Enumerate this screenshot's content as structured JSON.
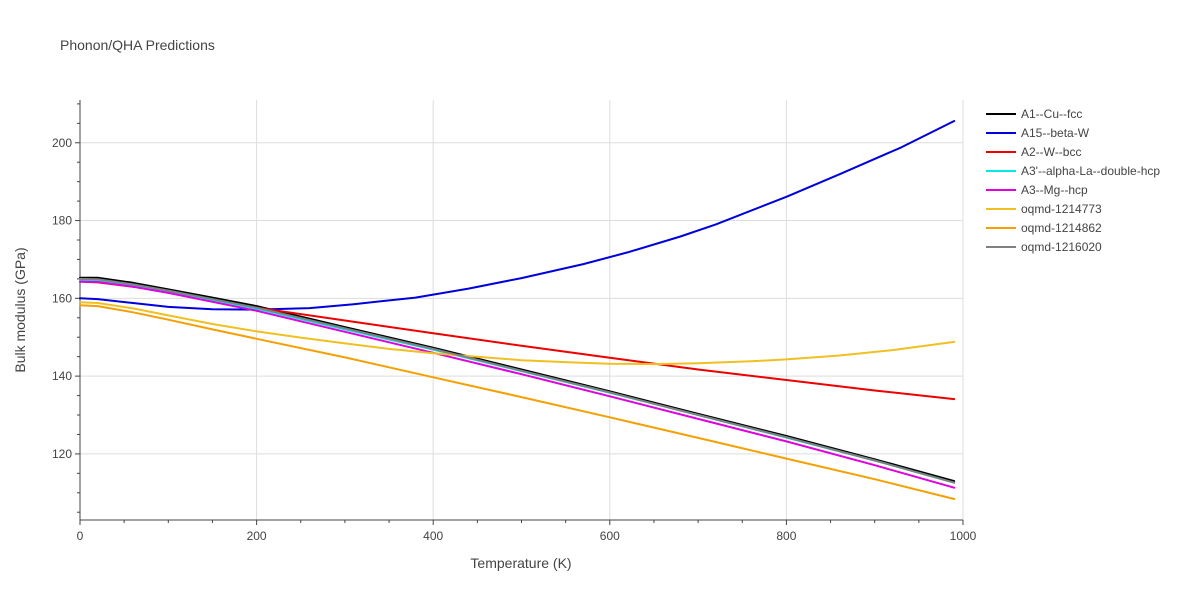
{
  "chart_data": {
    "type": "line",
    "title": "Phonon/QHA Predictions",
    "xlabel": "Temperature (K)",
    "ylabel": "Bulk modulus (GPa)",
    "xlim": [
      0,
      1000
    ],
    "ylim": [
      103,
      211
    ],
    "xticks": [
      0,
      200,
      400,
      600,
      800,
      1000
    ],
    "yticks": [
      120,
      140,
      160,
      180,
      200
    ],
    "grid": true,
    "legend_position": "right",
    "series": [
      {
        "name": "A1--Cu--fcc",
        "color": "#000000",
        "x": [
          0,
          20,
          60,
          100,
          150,
          200,
          300,
          400,
          500,
          600,
          700,
          800,
          900,
          990
        ],
        "y": [
          165.3,
          165.3,
          164,
          162.3,
          160.2,
          158,
          152.6,
          147.3,
          141.7,
          136.1,
          130.3,
          124.6,
          118.6,
          113
        ]
      },
      {
        "name": "A15--beta-W",
        "color": "#0000dd",
        "x": [
          0,
          20,
          60,
          100,
          150,
          200,
          260,
          310,
          380,
          440,
          500,
          570,
          620,
          680,
          720,
          800,
          860,
          930,
          990
        ],
        "y": [
          160,
          159.8,
          158.8,
          157.8,
          157.2,
          157.1,
          157.5,
          158.5,
          160.2,
          162.5,
          165.2,
          168.8,
          171.8,
          175.9,
          179,
          186.1,
          191.9,
          198.8,
          205.6
        ]
      },
      {
        "name": "A2--W--bcc",
        "color": "#ee0000",
        "x": [
          0,
          20,
          60,
          100,
          150,
          200,
          300,
          400,
          500,
          600,
          700,
          800,
          900,
          990
        ],
        "y": [
          164.3,
          164.1,
          163,
          161.5,
          159.5,
          157.6,
          154.3,
          151,
          147.8,
          144.7,
          141.7,
          139,
          136.3,
          134.1
        ]
      },
      {
        "name": "A3'--alpha-La--double-hcp",
        "color": "#00e8e8",
        "x": [
          0,
          20,
          60,
          100,
          150,
          200,
          300,
          400,
          500,
          600,
          700,
          800,
          900,
          990
        ],
        "y": [
          164.8,
          164.7,
          163.4,
          161.8,
          159.5,
          157.3,
          152,
          146.8,
          141.3,
          135.7,
          130,
          124.2,
          118.3,
          112.6
        ]
      },
      {
        "name": "A3--Mg--hcp",
        "color": "#e000e0",
        "x": [
          0,
          20,
          60,
          100,
          150,
          200,
          300,
          400,
          500,
          600,
          700,
          800,
          900,
          990
        ],
        "y": [
          164.3,
          164.2,
          163,
          161.4,
          159.1,
          156.8,
          151.4,
          146,
          140.5,
          134.8,
          129,
          123.2,
          117.1,
          111.3
        ]
      },
      {
        "name": "oqmd-1214773",
        "color": "#f0c020",
        "x": [
          0,
          20,
          60,
          100,
          150,
          200,
          250,
          300,
          350,
          400,
          450,
          500,
          560,
          600,
          650,
          700,
          760,
          800,
          860,
          920,
          990
        ],
        "y": [
          159,
          158.8,
          157.4,
          155.6,
          153.4,
          151.5,
          149.9,
          148.4,
          147,
          145.9,
          145,
          144.1,
          143.5,
          143.2,
          143.1,
          143.3,
          143.8,
          144.3,
          145.3,
          146.7,
          148.8
        ]
      },
      {
        "name": "oqmd-1214862",
        "color": "#f5a000",
        "x": [
          0,
          20,
          60,
          100,
          150,
          200,
          300,
          400,
          500,
          600,
          700,
          800,
          900,
          990
        ],
        "y": [
          158.2,
          158,
          156.4,
          154.5,
          152,
          149.6,
          144.8,
          139.7,
          134.6,
          129.4,
          124.1,
          118.8,
          113.5,
          108.4
        ]
      },
      {
        "name": "oqmd-1216020",
        "color": "#808080",
        "x": [
          0,
          20,
          60,
          100,
          150,
          200,
          300,
          400,
          500,
          600,
          700,
          800,
          900,
          990
        ],
        "y": [
          165,
          164.9,
          163.6,
          162,
          159.8,
          157.6,
          152.3,
          147,
          141.4,
          135.8,
          130,
          124.3,
          118.3,
          112.6
        ]
      }
    ]
  }
}
